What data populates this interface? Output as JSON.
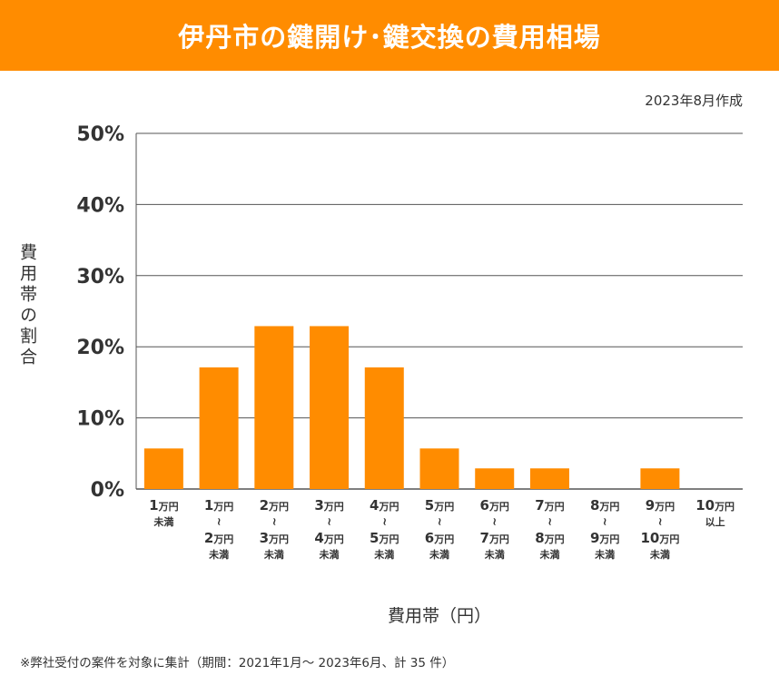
{
  "header": {
    "title": "伊丹市の鍵開け･鍵交換の費用相場"
  },
  "date": "2023年8月作成",
  "note": "※弊社受付の案件を対象に集計（期間：2021年1月～ 2023年6月、計 35 件）",
  "colors": {
    "header": "#FF8C00",
    "bar": "#FF8C00",
    "grid": "#555555"
  },
  "chart_data": {
    "type": "bar",
    "xlabel": "費用帯（円）",
    "ylabel": "費用帯の割合",
    "ylim": [
      0,
      50
    ],
    "yticks": [
      "0%",
      "10%",
      "20%",
      "30%",
      "40%",
      "50%"
    ],
    "grid": true,
    "categories": [
      [
        "1万円",
        "未満"
      ],
      [
        "1万円",
        "〜",
        "2万円",
        "未満"
      ],
      [
        "2万円",
        "〜",
        "3万円",
        "未満"
      ],
      [
        "3万円",
        "〜",
        "4万円",
        "未満"
      ],
      [
        "4万円",
        "〜",
        "5万円",
        "未満"
      ],
      [
        "5万円",
        "〜",
        "6万円",
        "未満"
      ],
      [
        "6万円",
        "〜",
        "7万円",
        "未満"
      ],
      [
        "7万円",
        "〜",
        "8万円",
        "未満"
      ],
      [
        "8万円",
        "〜",
        "9万円",
        "未満"
      ],
      [
        "9万円",
        "〜",
        "10万円",
        "未満"
      ],
      [
        "10万円",
        "以上"
      ]
    ],
    "values": [
      5.7,
      17.1,
      22.9,
      22.9,
      17.1,
      5.7,
      2.9,
      2.9,
      0,
      2.9,
      0
    ]
  }
}
